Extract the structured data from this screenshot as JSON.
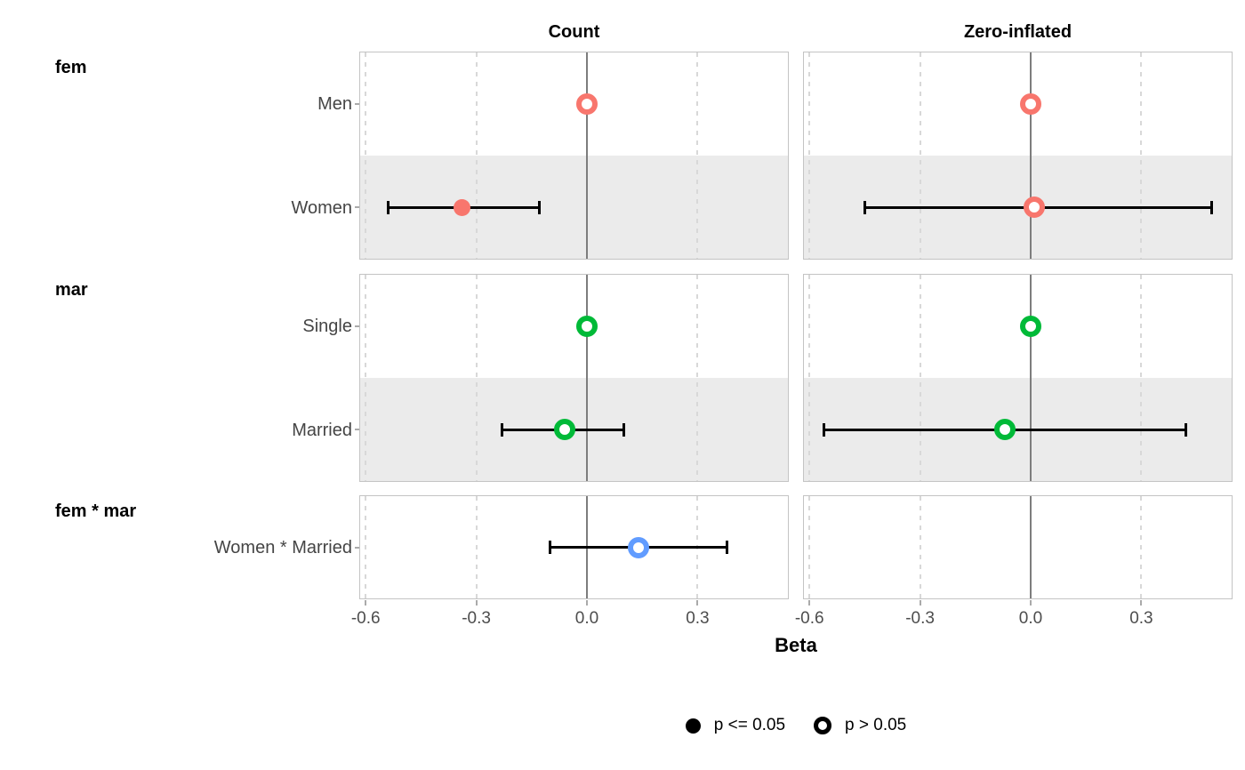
{
  "chart_data": {
    "type": "forest",
    "xlabel": "Beta",
    "facets": [
      {
        "label": "Count"
      },
      {
        "label": "Zero-inflated"
      }
    ],
    "x_ticks": [
      "-0.6",
      "-0.3",
      "0.0",
      "0.3"
    ],
    "x_tick_values": [
      -0.6,
      -0.3,
      0.0,
      0.3
    ],
    "x_range": [
      -0.615,
      0.545
    ],
    "zero_line": 0.0,
    "grid": "dashed-vertical",
    "legend_position": "bottom",
    "groups": [
      {
        "label": "fem",
        "color": "#F8766D",
        "rows": [
          {
            "label": "Men",
            "shaded": false,
            "estimates": {
              "Count": {
                "beta": 0.0,
                "ci_low": 0.0,
                "ci_high": 0.0,
                "significant": false
              },
              "Zero-inflated": {
                "beta": 0.0,
                "ci_low": 0.0,
                "ci_high": 0.0,
                "significant": false
              }
            }
          },
          {
            "label": "Women",
            "shaded": true,
            "estimates": {
              "Count": {
                "beta": -0.34,
                "ci_low": -0.54,
                "ci_high": -0.13,
                "significant": true
              },
              "Zero-inflated": {
                "beta": 0.01,
                "ci_low": -0.45,
                "ci_high": 0.49,
                "significant": false
              }
            }
          }
        ]
      },
      {
        "label": "mar",
        "color": "#00BA38",
        "rows": [
          {
            "label": "Single",
            "shaded": false,
            "estimates": {
              "Count": {
                "beta": 0.0,
                "ci_low": 0.0,
                "ci_high": 0.0,
                "significant": false
              },
              "Zero-inflated": {
                "beta": 0.0,
                "ci_low": 0.0,
                "ci_high": 0.0,
                "significant": false
              }
            }
          },
          {
            "label": "Married",
            "shaded": true,
            "estimates": {
              "Count": {
                "beta": -0.06,
                "ci_low": -0.23,
                "ci_high": 0.1,
                "significant": false
              },
              "Zero-inflated": {
                "beta": -0.07,
                "ci_low": -0.56,
                "ci_high": 0.42,
                "significant": false
              }
            }
          }
        ]
      },
      {
        "label": "fem * mar",
        "color": "#619CFF",
        "rows": [
          {
            "label": "Women * Married",
            "shaded": false,
            "estimates": {
              "Count": {
                "beta": 0.14,
                "ci_low": -0.1,
                "ci_high": 0.38,
                "significant": false
              },
              "Zero-inflated": null
            }
          }
        ]
      }
    ],
    "legend": [
      {
        "label": "p <= 0.05",
        "marker": "filled"
      },
      {
        "label": "p > 0.05",
        "marker": "open"
      }
    ],
    "style_colors": {
      "significant_fill": "#000000",
      "ci_bar": "#000000",
      "zero_line": "#7d7d7d",
      "gridline": "#d8d8d8",
      "shaded_band": "#ebebeb",
      "panel_border": "#c4c4c4",
      "fem_color": "#F8766D",
      "mar_color": "#00BA38",
      "interaction_color": "#619CFF"
    }
  }
}
